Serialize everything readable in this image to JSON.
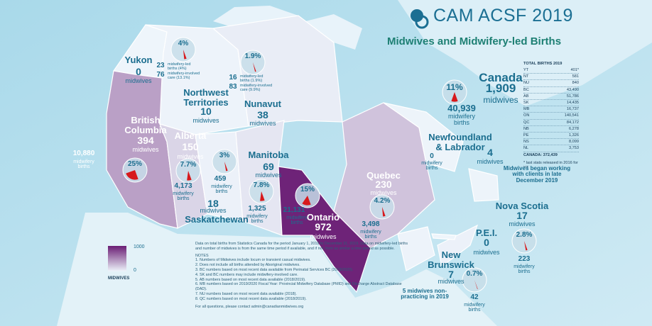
{
  "header": {
    "title": "CAM ACSF 2019",
    "subtitle": "Midwives and Midwifery-led Births"
  },
  "regions": [
    {
      "name": "Yukon",
      "midwives": 0,
      "midwives_unit": "midwives"
    },
    {
      "name": "Northwest Territories",
      "midwives": 10,
      "midwives_unit": "midwives",
      "share": {
        "value": 4,
        "label": "4%"
      },
      "births": "23",
      "births_unit": "midwifery-led births (4%)",
      "care": "76",
      "care_unit": "midwifery-involved care (13.1%)"
    },
    {
      "name": "Nunavut",
      "midwives": 38,
      "midwives_unit": "midwives",
      "share": {
        "value": 1.9,
        "label": "1.9%"
      },
      "births": "16",
      "births_unit": "midwifery-led births (1.9%)",
      "care": "83",
      "care_unit": "midwifery-involved care (9.9%)"
    },
    {
      "name": "British Columbia",
      "midwives": 394,
      "midwives_unit": "midwives",
      "share": {
        "value": 25,
        "label": "25%"
      },
      "births": "10,880",
      "births_unit": "midwifery births"
    },
    {
      "name": "Alberta",
      "midwives": 150,
      "midwives_unit": "midwives",
      "share": {
        "value": 7.7,
        "label": "7.7%"
      },
      "births": "4,173",
      "births_unit": "midwifery births"
    },
    {
      "name": "Saskatchewan",
      "midwives": 18,
      "midwives_unit": "midwives",
      "share": {
        "value": 3,
        "label": "3%"
      },
      "births": "459",
      "births_unit": "midwifery births"
    },
    {
      "name": "Manitoba",
      "midwives": 69,
      "midwives_unit": "midwives",
      "share": {
        "value": 7.8,
        "label": "7.8%"
      },
      "births": "1,325",
      "births_unit": "midwifery births"
    },
    {
      "name": "Ontario",
      "midwives": 972,
      "midwives_unit": "midwives",
      "share": {
        "value": 15,
        "label": "15%"
      },
      "births": "21,131",
      "births_unit": "midwifery births"
    },
    {
      "name": "Quebec",
      "midwives": 230,
      "midwives_unit": "midwives",
      "share": {
        "value": 4.2,
        "label": "4.2%"
      },
      "births": "3,498",
      "births_unit": "midwifery births"
    },
    {
      "name": "Newfoundland & Labrador",
      "midwives": 4,
      "midwives_unit": "midwives",
      "births": "0",
      "births_unit": "midwifery births",
      "note": "Midwives began working with clients in late December 2019"
    },
    {
      "name": "Nova Scotia",
      "midwives": 17,
      "midwives_unit": "midwives",
      "share": {
        "value": 2.8,
        "label": "2.8%"
      },
      "births": "223",
      "births_unit": "midwifery births"
    },
    {
      "name": "P.E.I.",
      "midwives": 0,
      "midwives_unit": "midwives"
    },
    {
      "name": "New Brunswick",
      "midwives": 7,
      "midwives_unit": "midwives",
      "share": {
        "value": 0.7,
        "label": "0.7%"
      },
      "births": "42",
      "births_unit": "midwifery births",
      "note": "5 midwives non-practicing in 2019"
    },
    {
      "name": "Canada",
      "midwives": "1,909",
      "midwives_unit": "midwives",
      "share": {
        "value": 11,
        "label": "11%"
      },
      "births": "40,939",
      "births_unit": "midwifery births"
    }
  ],
  "legend": {
    "max": 1000,
    "min": 0,
    "label": "MIDWIVES",
    "colors": [
      "#eef5fb",
      "#6a1d74"
    ]
  },
  "totals": {
    "title": "TOTAL BIRTHS 2019",
    "rows": [
      [
        "YT",
        "401*"
      ],
      [
        "NT",
        "581"
      ],
      [
        "NU",
        "840"
      ],
      [
        "BC",
        "43,490"
      ],
      [
        "AB",
        "51,786"
      ],
      [
        "SK",
        "14,435"
      ],
      [
        "MB",
        "16,737"
      ],
      [
        "ON",
        "140,541"
      ],
      [
        "QC",
        "84,172"
      ],
      [
        "NB",
        "6,278"
      ],
      [
        "PE",
        "1,326"
      ],
      [
        "NS",
        "8,099"
      ],
      [
        "NL",
        "3,753"
      ]
    ],
    "total": "CANADA: 372,439",
    "footnote": "* last stats released in 2016 for YT"
  },
  "notes": {
    "intro": "Data on total births from Statistics Canada for the period January 1, 2019 to December 31, 2019. Data on midwifery-led births and number of midwives is from the same time period if available, and if not, from as similar a time period as possible.",
    "heading": "NOTES",
    "items": [
      "1. Numbers of Midwives include locum or transient casual midwives.",
      "2. Does not include all births attended by Aboriginal midwives.",
      "3. BC numbers based on most recent data available from Perinatal Services BC (2019/2020).",
      "4. SK and BC numbers may include midwifery-involved care.",
      "5. AB numbers based on most recent data available (2018/2019).",
      "6. MB numbers based on 2019/2020 Fiscal Year: Provincial Midwifery Database (PMID) and Discharge Abstract Database (DAD).",
      "7. NU numbers based on most recent data available (2018).",
      "8. QC numbers based on most recent data available (2018/2019)."
    ],
    "contact": "For all questions, please contact admin@canadianmidwives.org"
  }
}
